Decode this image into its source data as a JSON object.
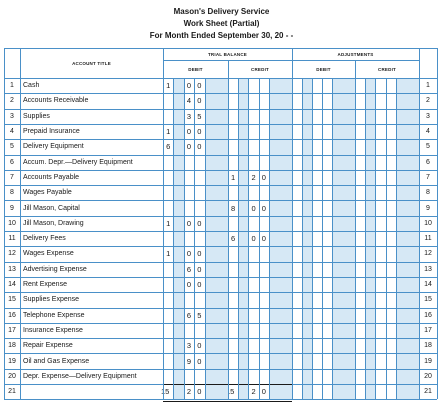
{
  "header": {
    "company": "Mason's Delivery Service",
    "document": "Work Sheet (Partial)",
    "period": "For Month Ended September 30, 20 - -"
  },
  "columns": {
    "account_title": "ACCOUNT TITLE",
    "trial_balance": "TRIAL BALANCE",
    "adjustments": "ADJUSTMENTS",
    "debit": "DEBIT",
    "credit": "CREDIT"
  },
  "rows": [
    {
      "num": "1",
      "account": "Cash",
      "tb_debit": [
        "1",
        "6",
        "0",
        "0",
        "00"
      ],
      "tb_credit": [
        "",
        "",
        "",
        "",
        ""
      ]
    },
    {
      "num": "2",
      "account": "Accounts Receivable",
      "tb_debit": [
        "",
        "9",
        "4",
        "0",
        "00"
      ],
      "tb_credit": [
        "",
        "",
        "",
        "",
        ""
      ]
    },
    {
      "num": "3",
      "account": "Supplies",
      "tb_debit": [
        "",
        "6",
        "3",
        "5",
        "00"
      ],
      "tb_credit": [
        "",
        "",
        "",
        "",
        ""
      ]
    },
    {
      "num": "4",
      "account": "Prepaid Insurance",
      "tb_debit": [
        "1",
        "2",
        "0",
        "0",
        "00"
      ],
      "tb_credit": [
        "",
        "",
        "",
        "",
        ""
      ]
    },
    {
      "num": "5",
      "account": "Delivery Equipment",
      "tb_debit": [
        "6",
        "4",
        "0",
        "0",
        "00"
      ],
      "tb_credit": [
        "",
        "",
        "",
        "",
        ""
      ]
    },
    {
      "num": "6",
      "account": "Accum. Depr.—Delivery Equipment",
      "tb_debit": [
        "",
        "",
        "",
        "",
        ""
      ],
      "tb_credit": [
        "",
        "",
        "",
        "",
        ""
      ]
    },
    {
      "num": "7",
      "account": "Accounts Payable",
      "tb_debit": [
        "",
        "",
        "",
        "",
        ""
      ],
      "tb_credit": [
        "1",
        "2",
        "2",
        "0",
        "00"
      ]
    },
    {
      "num": "8",
      "account": "Wages Payable",
      "tb_debit": [
        "",
        "",
        "",
        "",
        ""
      ],
      "tb_credit": [
        "",
        "",
        "",
        "",
        ""
      ]
    },
    {
      "num": "9",
      "account": "Jill Mason, Capital",
      "tb_debit": [
        "",
        "",
        "",
        "",
        ""
      ],
      "tb_credit": [
        "8",
        "0",
        "0",
        "0",
        "00"
      ]
    },
    {
      "num": "10",
      "account": "Jill Mason, Drawing",
      "tb_debit": [
        "1",
        "4",
        "0",
        "0",
        "00"
      ],
      "tb_credit": [
        "",
        "",
        "",
        "",
        ""
      ]
    },
    {
      "num": "11",
      "account": "Delivery Fees",
      "tb_debit": [
        "",
        "",
        "",
        "",
        ""
      ],
      "tb_credit": [
        "6",
        "2",
        "0",
        "0",
        "00"
      ]
    },
    {
      "num": "12",
      "account": "Wages Expense",
      "tb_debit": [
        "1",
        "5",
        "0",
        "0",
        "00"
      ],
      "tb_credit": [
        "",
        "",
        "",
        "",
        ""
      ]
    },
    {
      "num": "13",
      "account": "Advertising Expense",
      "tb_debit": [
        "",
        "4",
        "6",
        "0",
        "00"
      ],
      "tb_credit": [
        "",
        "",
        "",
        "",
        ""
      ]
    },
    {
      "num": "14",
      "account": "Rent Expense",
      "tb_debit": [
        "",
        "8",
        "0",
        "0",
        "00"
      ],
      "tb_credit": [
        "",
        "",
        "",
        "",
        ""
      ]
    },
    {
      "num": "15",
      "account": "Supplies Expense",
      "tb_debit": [
        "",
        "",
        "",
        "",
        ""
      ],
      "tb_credit": [
        "",
        "",
        "",
        "",
        ""
      ]
    },
    {
      "num": "16",
      "account": "Telephone Expense",
      "tb_debit": [
        "",
        "1",
        "6",
        "5",
        "00"
      ],
      "tb_credit": [
        "",
        "",
        "",
        "",
        ""
      ]
    },
    {
      "num": "17",
      "account": "Insurance Expense",
      "tb_debit": [
        "",
        "",
        "",
        "",
        ""
      ],
      "tb_credit": [
        "",
        "",
        "",
        "",
        ""
      ]
    },
    {
      "num": "18",
      "account": "Repair Expense",
      "tb_debit": [
        "",
        "2",
        "3",
        "0",
        "00"
      ],
      "tb_credit": [
        "",
        "",
        "",
        "",
        ""
      ]
    },
    {
      "num": "19",
      "account": "Oil and Gas Expense",
      "tb_debit": [
        "",
        "",
        "9",
        "0",
        "00"
      ],
      "tb_credit": [
        "",
        "",
        "",
        "",
        ""
      ]
    },
    {
      "num": "20",
      "account": "Depr. Expense—Delivery Equipment",
      "tb_debit": [
        "",
        "",
        "",
        "",
        ""
      ],
      "tb_credit": [
        "",
        "",
        "",
        "",
        ""
      ]
    },
    {
      "num": "21",
      "account": "",
      "tb_debit": [
        "15",
        "4",
        "2",
        "0",
        "00"
      ],
      "tb_credit": [
        "15",
        "4",
        "2",
        "0",
        "00"
      ]
    }
  ],
  "colors": {
    "rule": "#4a90c8",
    "band": "#d6e8f5",
    "text": "#1a1a1a"
  }
}
